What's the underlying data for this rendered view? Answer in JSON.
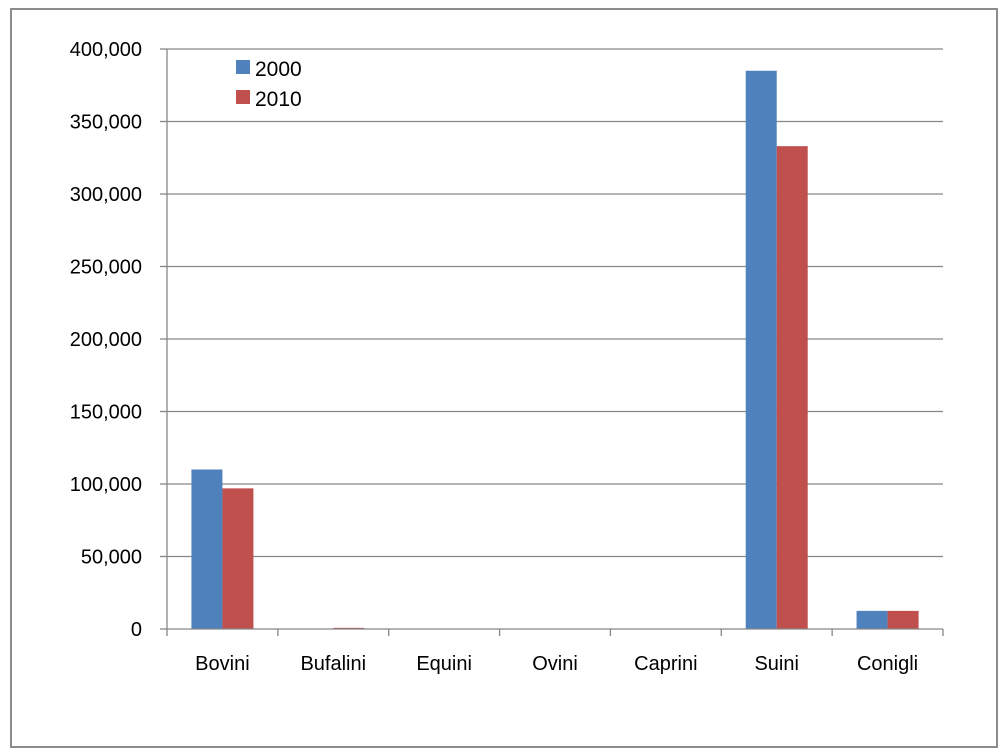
{
  "chart_data": {
    "type": "bar",
    "title": "",
    "xlabel": "",
    "ylabel": "",
    "categories": [
      "Bovini",
      "Bufalini",
      "Equini",
      "Ovini",
      "Caprini",
      "Suini",
      "Conigli"
    ],
    "series": [
      {
        "name": "2000",
        "color": "#4f81bd",
        "values": [
          110000,
          0,
          0,
          0,
          0,
          385000,
          12500
        ]
      },
      {
        "name": "2010",
        "color": "#c0504d",
        "values": [
          97000,
          800,
          0,
          0,
          0,
          333000,
          12500
        ]
      }
    ],
    "ylim": [
      0,
      400000
    ],
    "ytick_values": [
      0,
      50000,
      100000,
      150000,
      200000,
      250000,
      300000,
      350000,
      400000
    ],
    "ytick_labels": [
      "0",
      "50,000",
      "100,000",
      "150,000",
      "200,000",
      "250,000",
      "300,000",
      "350,000",
      "400,000"
    ],
    "grid": true,
    "legend": "top-left"
  }
}
